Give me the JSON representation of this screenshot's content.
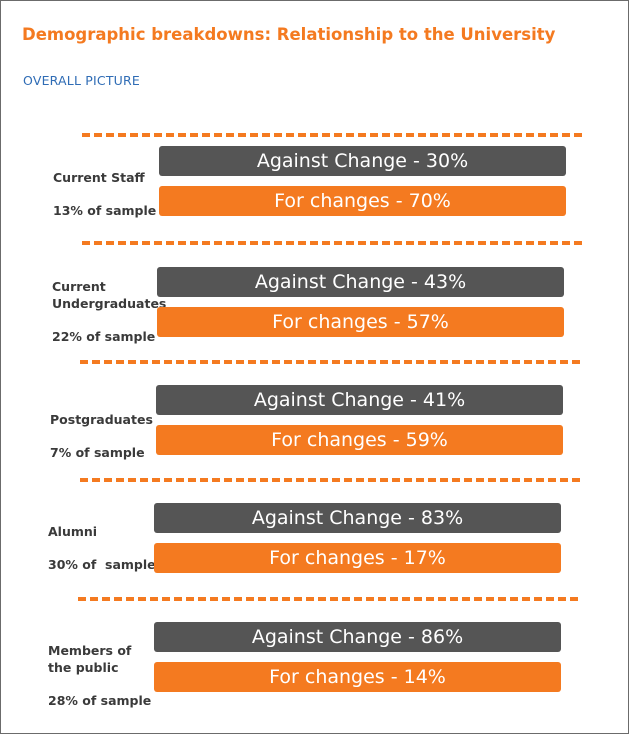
{
  "title": "Demographic breakdowns: Relationship to the University",
  "subtitle": "OVERALL PICTURE",
  "colors": {
    "against": "#555555",
    "for": "#f47a20",
    "title": "#f47a20",
    "subtitle": "#2f6cb5"
  },
  "chart_data": {
    "type": "table",
    "groups": [
      {
        "label": "Current Staff",
        "sample": "13% of sample",
        "against": "Against Change - 30%",
        "for": "For changes - 70%"
      },
      {
        "label": "Current Undergraduates",
        "sample": "22% of sample",
        "against": "Against Change - 43%",
        "for": "For changes - 57%"
      },
      {
        "label": "Postgraduates",
        "sample": "7% of sample",
        "against": "Against Change - 41%",
        "for": "For changes - 59%"
      },
      {
        "label": "Alumni",
        "sample": "30% of  sample",
        "against": "Against Change - 83%",
        "for": "For changes - 17%"
      },
      {
        "label": "Members of the public",
        "sample": "28% of sample",
        "against": "Against Change - 86%",
        "for": "For changes - 14%"
      }
    ],
    "series": [
      {
        "name": "Against Change",
        "values": [
          30,
          43,
          41,
          83,
          86
        ]
      },
      {
        "name": "For changes",
        "values": [
          70,
          57,
          59,
          17,
          14
        ]
      }
    ]
  }
}
